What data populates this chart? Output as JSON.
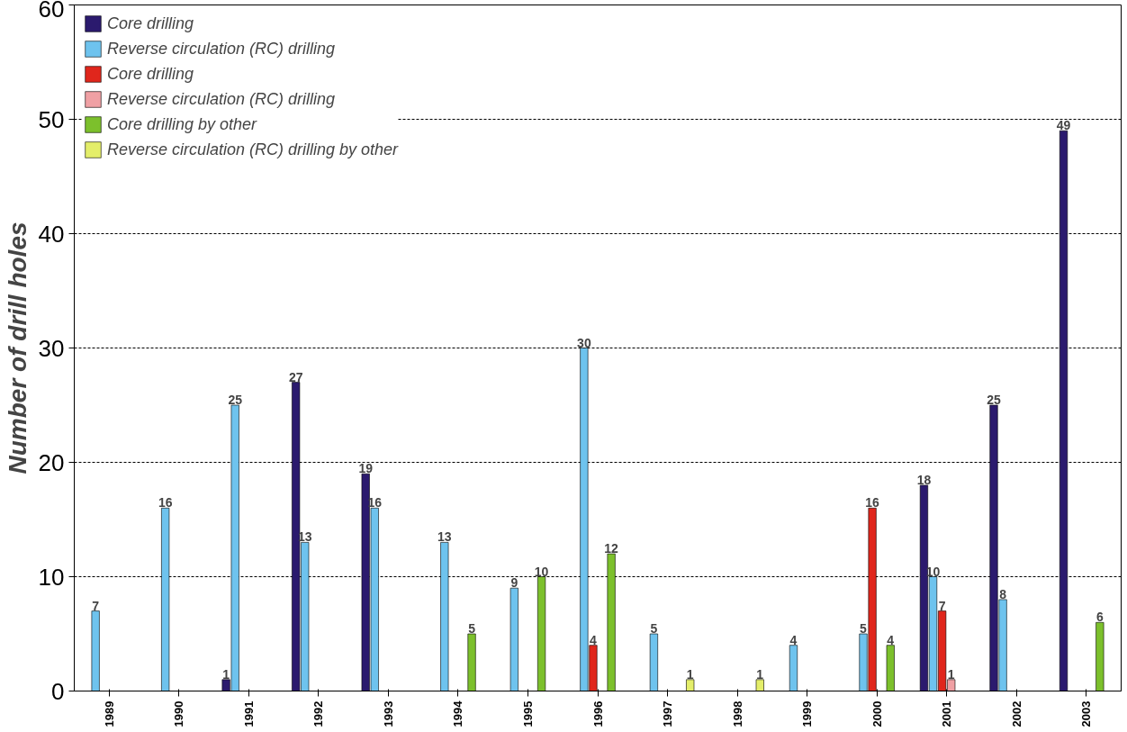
{
  "chart_data": {
    "type": "bar",
    "ylabel": "Number of drill holes",
    "categories": [
      "1989",
      "1990",
      "1991",
      "1992",
      "1993",
      "1994",
      "1995",
      "1996",
      "1997",
      "1998",
      "1999",
      "2000",
      "2001",
      "2002",
      "2003"
    ],
    "series": [
      {
        "name": "Core drilling",
        "color": "#2b1a6e",
        "values": [
          null,
          null,
          1,
          27,
          19,
          null,
          null,
          null,
          null,
          null,
          null,
          null,
          18,
          25,
          49
        ]
      },
      {
        "name": "Reverse circulation (RC) drilling",
        "color": "#6ec3ee",
        "values": [
          7,
          16,
          25,
          13,
          16,
          13,
          9,
          30,
          5,
          null,
          4,
          5,
          10,
          8,
          null
        ]
      },
      {
        "name": "Core drilling",
        "color": "#e0261c",
        "values": [
          null,
          null,
          null,
          null,
          null,
          null,
          null,
          4,
          null,
          null,
          null,
          16,
          7,
          null,
          null
        ]
      },
      {
        "name": "Reverse circulation (RC) drilling",
        "color": "#f0a0a4",
        "values": [
          null,
          null,
          null,
          null,
          null,
          null,
          null,
          null,
          null,
          null,
          null,
          null,
          1,
          null,
          null
        ]
      },
      {
        "name": "Core drilling by other",
        "color": "#7cc02c",
        "values": [
          null,
          null,
          null,
          null,
          null,
          5,
          10,
          12,
          null,
          null,
          null,
          4,
          null,
          null,
          6
        ]
      },
      {
        "name": "Reverse circulation (RC) drilling by other",
        "color": "#e4ee6a",
        "values": [
          null,
          null,
          null,
          null,
          null,
          null,
          null,
          null,
          1,
          1,
          null,
          null,
          null,
          null,
          null
        ]
      }
    ],
    "ylim": [
      0,
      60
    ],
    "yticks": [
      0,
      10,
      20,
      30,
      40,
      50,
      60
    ],
    "grid": "y",
    "legend": "top left",
    "data_labels": true
  }
}
